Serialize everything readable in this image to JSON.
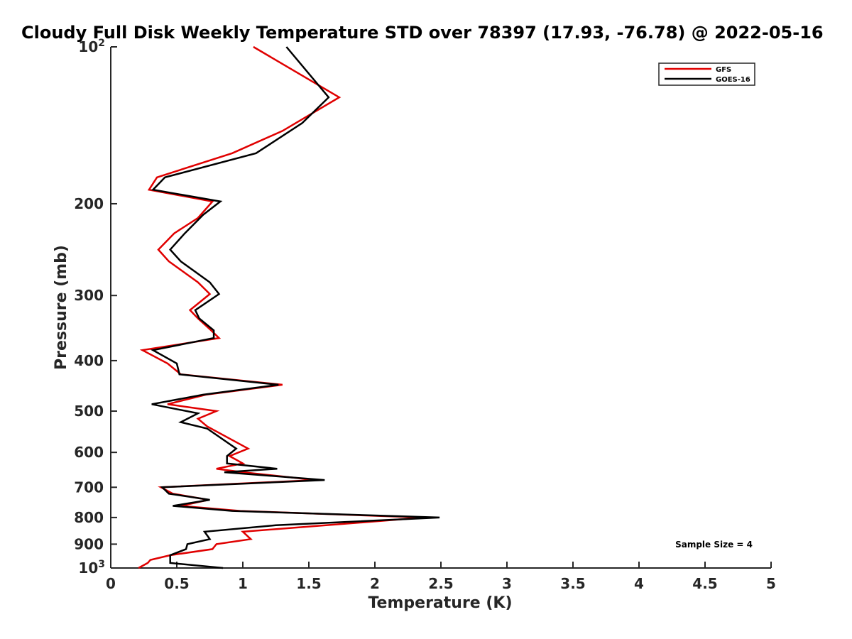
{
  "chart_data": {
    "type": "line",
    "title": "Cloudy Full Disk Weekly Temperature STD over 78397 (17.93, -76.78) @ 2022-05-16",
    "xlabel": "Temperature (K)",
    "ylabel": "Pressure (mb)",
    "xlim": [
      0,
      5
    ],
    "ylim": [
      1000,
      100
    ],
    "yscale": "log",
    "grid": false,
    "legend_position": "top-right",
    "x_ticks": [
      "0",
      "0.5",
      "1",
      "1.5",
      "2",
      "2.5",
      "3",
      "3.5",
      "4",
      "4.5",
      "5"
    ],
    "y_ticks": [
      {
        "value": 100,
        "base": "10",
        "exp": "2"
      },
      {
        "value": 200,
        "label": "200"
      },
      {
        "value": 300,
        "label": "300"
      },
      {
        "value": 400,
        "label": "400"
      },
      {
        "value": 500,
        "label": "500"
      },
      {
        "value": 600,
        "label": "600"
      },
      {
        "value": 700,
        "label": "700"
      },
      {
        "value": 800,
        "label": "800"
      },
      {
        "value": 900,
        "label": "900"
      },
      {
        "value": 1000,
        "base": "10",
        "exp": "3"
      }
    ],
    "annotation": "Sample Size = 4",
    "series": [
      {
        "name": "GFS",
        "color": "#e00000",
        "points": [
          [
            1.08,
            100
          ],
          [
            1.73,
            125
          ],
          [
            1.3,
            145
          ],
          [
            0.92,
            160
          ],
          [
            0.35,
            178
          ],
          [
            0.29,
            188
          ],
          [
            0.77,
            198
          ],
          [
            0.66,
            213
          ],
          [
            0.48,
            228
          ],
          [
            0.36,
            245
          ],
          [
            0.44,
            258
          ],
          [
            0.66,
            283
          ],
          [
            0.75,
            298
          ],
          [
            0.6,
            320
          ],
          [
            0.66,
            332
          ],
          [
            0.76,
            350
          ],
          [
            0.82,
            362
          ],
          [
            0.24,
            382
          ],
          [
            0.43,
            405
          ],
          [
            0.53,
            425
          ],
          [
            1.3,
            445
          ],
          [
            0.72,
            465
          ],
          [
            0.43,
            485
          ],
          [
            0.8,
            500
          ],
          [
            0.66,
            517
          ],
          [
            0.73,
            535
          ],
          [
            1.04,
            590
          ],
          [
            0.9,
            610
          ],
          [
            1.0,
            630
          ],
          [
            0.8,
            645
          ],
          [
            1.0,
            655
          ],
          [
            1.55,
            678
          ],
          [
            0.38,
            700
          ],
          [
            0.47,
            720
          ],
          [
            0.74,
            740
          ],
          [
            0.53,
            760
          ],
          [
            0.98,
            777
          ],
          [
            2.37,
            800
          ],
          [
            1.63,
            828
          ],
          [
            1.0,
            852
          ],
          [
            1.06,
            880
          ],
          [
            0.8,
            900
          ],
          [
            0.77,
            920
          ],
          [
            0.45,
            945
          ],
          [
            0.3,
            965
          ],
          [
            0.28,
            978
          ],
          [
            0.21,
            1000
          ]
        ]
      },
      {
        "name": "GOES-16",
        "color": "#000000",
        "points": [
          [
            1.33,
            100
          ],
          [
            1.65,
            125
          ],
          [
            1.45,
            140
          ],
          [
            1.1,
            160
          ],
          [
            0.41,
            178
          ],
          [
            0.32,
            188
          ],
          [
            0.83,
            198
          ],
          [
            0.7,
            210
          ],
          [
            0.56,
            228
          ],
          [
            0.45,
            245
          ],
          [
            0.53,
            258
          ],
          [
            0.75,
            283
          ],
          [
            0.82,
            298
          ],
          [
            0.64,
            320
          ],
          [
            0.67,
            332
          ],
          [
            0.78,
            350
          ],
          [
            0.78,
            362
          ],
          [
            0.32,
            382
          ],
          [
            0.5,
            405
          ],
          [
            0.52,
            425
          ],
          [
            1.27,
            445
          ],
          [
            0.7,
            465
          ],
          [
            0.31,
            485
          ],
          [
            0.66,
            505
          ],
          [
            0.53,
            525
          ],
          [
            0.73,
            540
          ],
          [
            0.95,
            590
          ],
          [
            0.88,
            610
          ],
          [
            0.88,
            630
          ],
          [
            1.26,
            645
          ],
          [
            0.86,
            655
          ],
          [
            1.62,
            678
          ],
          [
            0.39,
            700
          ],
          [
            0.44,
            720
          ],
          [
            0.75,
            740
          ],
          [
            0.47,
            760
          ],
          [
            0.92,
            777
          ],
          [
            2.49,
            800
          ],
          [
            1.25,
            828
          ],
          [
            0.71,
            852
          ],
          [
            0.75,
            880
          ],
          [
            0.58,
            900
          ],
          [
            0.57,
            920
          ],
          [
            0.45,
            945
          ],
          [
            0.45,
            965
          ],
          [
            0.45,
            978
          ],
          [
            0.85,
            1000
          ]
        ]
      }
    ]
  }
}
